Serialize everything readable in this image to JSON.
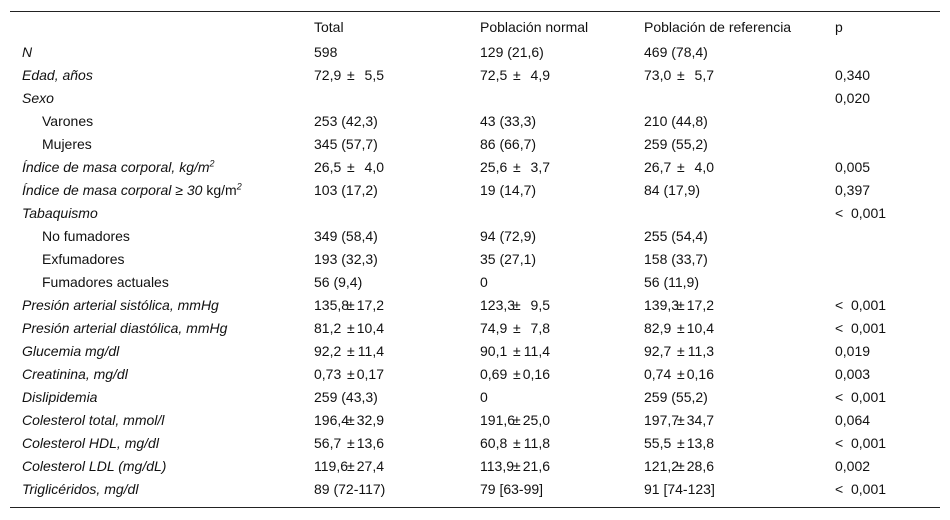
{
  "table": {
    "headers": [
      "",
      "Total",
      "Población normal",
      "Población de referencia",
      "p"
    ],
    "rows": [
      {
        "label": "N",
        "italic": true,
        "indent": false,
        "cells": [
          {
            "text": "598"
          },
          {
            "text": "129 (21,6)"
          },
          {
            "text": "469 (78,4)"
          }
        ],
        "p": ""
      },
      {
        "label": "Edad, años",
        "italic": true,
        "indent": false,
        "cells": [
          {
            "mean": "72,9",
            "sd": "5,5"
          },
          {
            "mean": "72,5",
            "sd": "4,9"
          },
          {
            "mean": "73,0",
            "sd": "5,7"
          }
        ],
        "p": "0,340"
      },
      {
        "label": "Sexo",
        "italic": true,
        "indent": false,
        "cells": [
          {
            "text": ""
          },
          {
            "text": ""
          },
          {
            "text": ""
          }
        ],
        "p": "0,020"
      },
      {
        "label": "Varones",
        "italic": false,
        "indent": true,
        "cells": [
          {
            "text": "253 (42,3)"
          },
          {
            "text": "43 (33,3)"
          },
          {
            "text": "210 (44,8)"
          }
        ],
        "p": ""
      },
      {
        "label": "Mujeres",
        "italic": false,
        "indent": true,
        "cells": [
          {
            "text": "345 (57,7)"
          },
          {
            "text": "86 (66,7)"
          },
          {
            "text": "259 (55,2)"
          }
        ],
        "p": ""
      },
      {
        "label": "Índice de masa corporal, kg/m",
        "sup": "2",
        "italic": true,
        "indent": false,
        "cells": [
          {
            "mean": "26,5",
            "sd": "4,0"
          },
          {
            "mean": "25,6",
            "sd": "3,7"
          },
          {
            "mean": "26,7",
            "sd": "4,0"
          }
        ],
        "p": "0,005"
      },
      {
        "label": "Índice de masa corporal ≥ 30",
        "suffix": " kg/m",
        "sup": "2",
        "italic": true,
        "indent": false,
        "cells": [
          {
            "text": "103 (17,2)"
          },
          {
            "text": "19 (14,7)"
          },
          {
            "text": "84 (17,9)"
          }
        ],
        "p": "0,397"
      },
      {
        "label": "Tabaquismo",
        "italic": true,
        "indent": false,
        "cells": [
          {
            "text": ""
          },
          {
            "text": ""
          },
          {
            "text": ""
          }
        ],
        "p": "< 0,001"
      },
      {
        "label": "No fumadores",
        "italic": false,
        "indent": true,
        "cells": [
          {
            "text": "349 (58,4)"
          },
          {
            "text": "94 (72,9)"
          },
          {
            "text": "255 (54,4)"
          }
        ],
        "p": ""
      },
      {
        "label": "Exfumadores",
        "italic": false,
        "indent": true,
        "cells": [
          {
            "text": "193 (32,3)"
          },
          {
            "text": "35 (27,1)"
          },
          {
            "text": "158 (33,7)"
          }
        ],
        "p": ""
      },
      {
        "label": "Fumadores actuales",
        "italic": false,
        "indent": true,
        "cells": [
          {
            "text": "56 (9,4)"
          },
          {
            "text": "0"
          },
          {
            "text": "56 (11,9)"
          }
        ],
        "p": ""
      },
      {
        "label": "Presión arterial sistólica, mmHg",
        "italic": true,
        "indent": false,
        "cells": [
          {
            "mean": "135,8",
            "sd": "17,2"
          },
          {
            "mean": "123,3",
            "sd": "9,5"
          },
          {
            "mean": "139,3",
            "sd": "17,2"
          }
        ],
        "p": "< 0,001"
      },
      {
        "label": "Presión arterial diastólica, mmHg",
        "italic": true,
        "indent": false,
        "cells": [
          {
            "mean": "81,2",
            "sd": "10,4"
          },
          {
            "mean": "74,9",
            "sd": "7,8"
          },
          {
            "mean": "82,9",
            "sd": "10,4"
          }
        ],
        "p": "< 0,001"
      },
      {
        "label": "Glucemia mg/dl",
        "italic": true,
        "indent": false,
        "cells": [
          {
            "mean": "92,2",
            "sd": "11,4"
          },
          {
            "mean": "90,1",
            "sd": "11,4"
          },
          {
            "mean": "92,7",
            "sd": "11,3"
          }
        ],
        "p": "0,019"
      },
      {
        "label": "Creatinina, mg/dl",
        "italic": true,
        "indent": false,
        "cells": [
          {
            "mean": "0,73",
            "sd": "0,17"
          },
          {
            "mean": "0,69",
            "sd": "0,16"
          },
          {
            "mean": "0,74",
            "sd": "0,16"
          }
        ],
        "p": "0,003"
      },
      {
        "label": "Dislipidemia",
        "italic": true,
        "indent": false,
        "cells": [
          {
            "text": "259 (43,3)"
          },
          {
            "text": "0"
          },
          {
            "text": "259 (55,2)"
          }
        ],
        "p": "< 0,001"
      },
      {
        "label": "Colesterol total, mmol/l",
        "italic": true,
        "indent": false,
        "cells": [
          {
            "mean": "196,4",
            "sd": "32,9"
          },
          {
            "mean": "191,6",
            "sd": "25,0"
          },
          {
            "mean": "197,7",
            "sd": "34,7"
          }
        ],
        "p": "0,064"
      },
      {
        "label": "Colesterol HDL, mg/dl",
        "italic": true,
        "indent": false,
        "cells": [
          {
            "mean": "56,7",
            "sd": "13,6"
          },
          {
            "mean": "60,8",
            "sd": "11,8"
          },
          {
            "mean": "55,5",
            "sd": "13,8"
          }
        ],
        "p": "< 0,001"
      },
      {
        "label": "Colesterol LDL (mg/dL)",
        "italic": true,
        "indent": false,
        "cells": [
          {
            "mean": "119,6",
            "sd": "27,4"
          },
          {
            "mean": "113,9",
            "sd": "21,6"
          },
          {
            "mean": "121,2",
            "sd": "28,6"
          }
        ],
        "p": "0,002"
      },
      {
        "label": "Triglicéridos, mg/dl",
        "italic": true,
        "indent": false,
        "cells": [
          {
            "text": "89 (72-117)"
          },
          {
            "text": "79 [63-99]"
          },
          {
            "text": "91 [74-123]"
          }
        ],
        "p": "< 0,001"
      }
    ]
  }
}
